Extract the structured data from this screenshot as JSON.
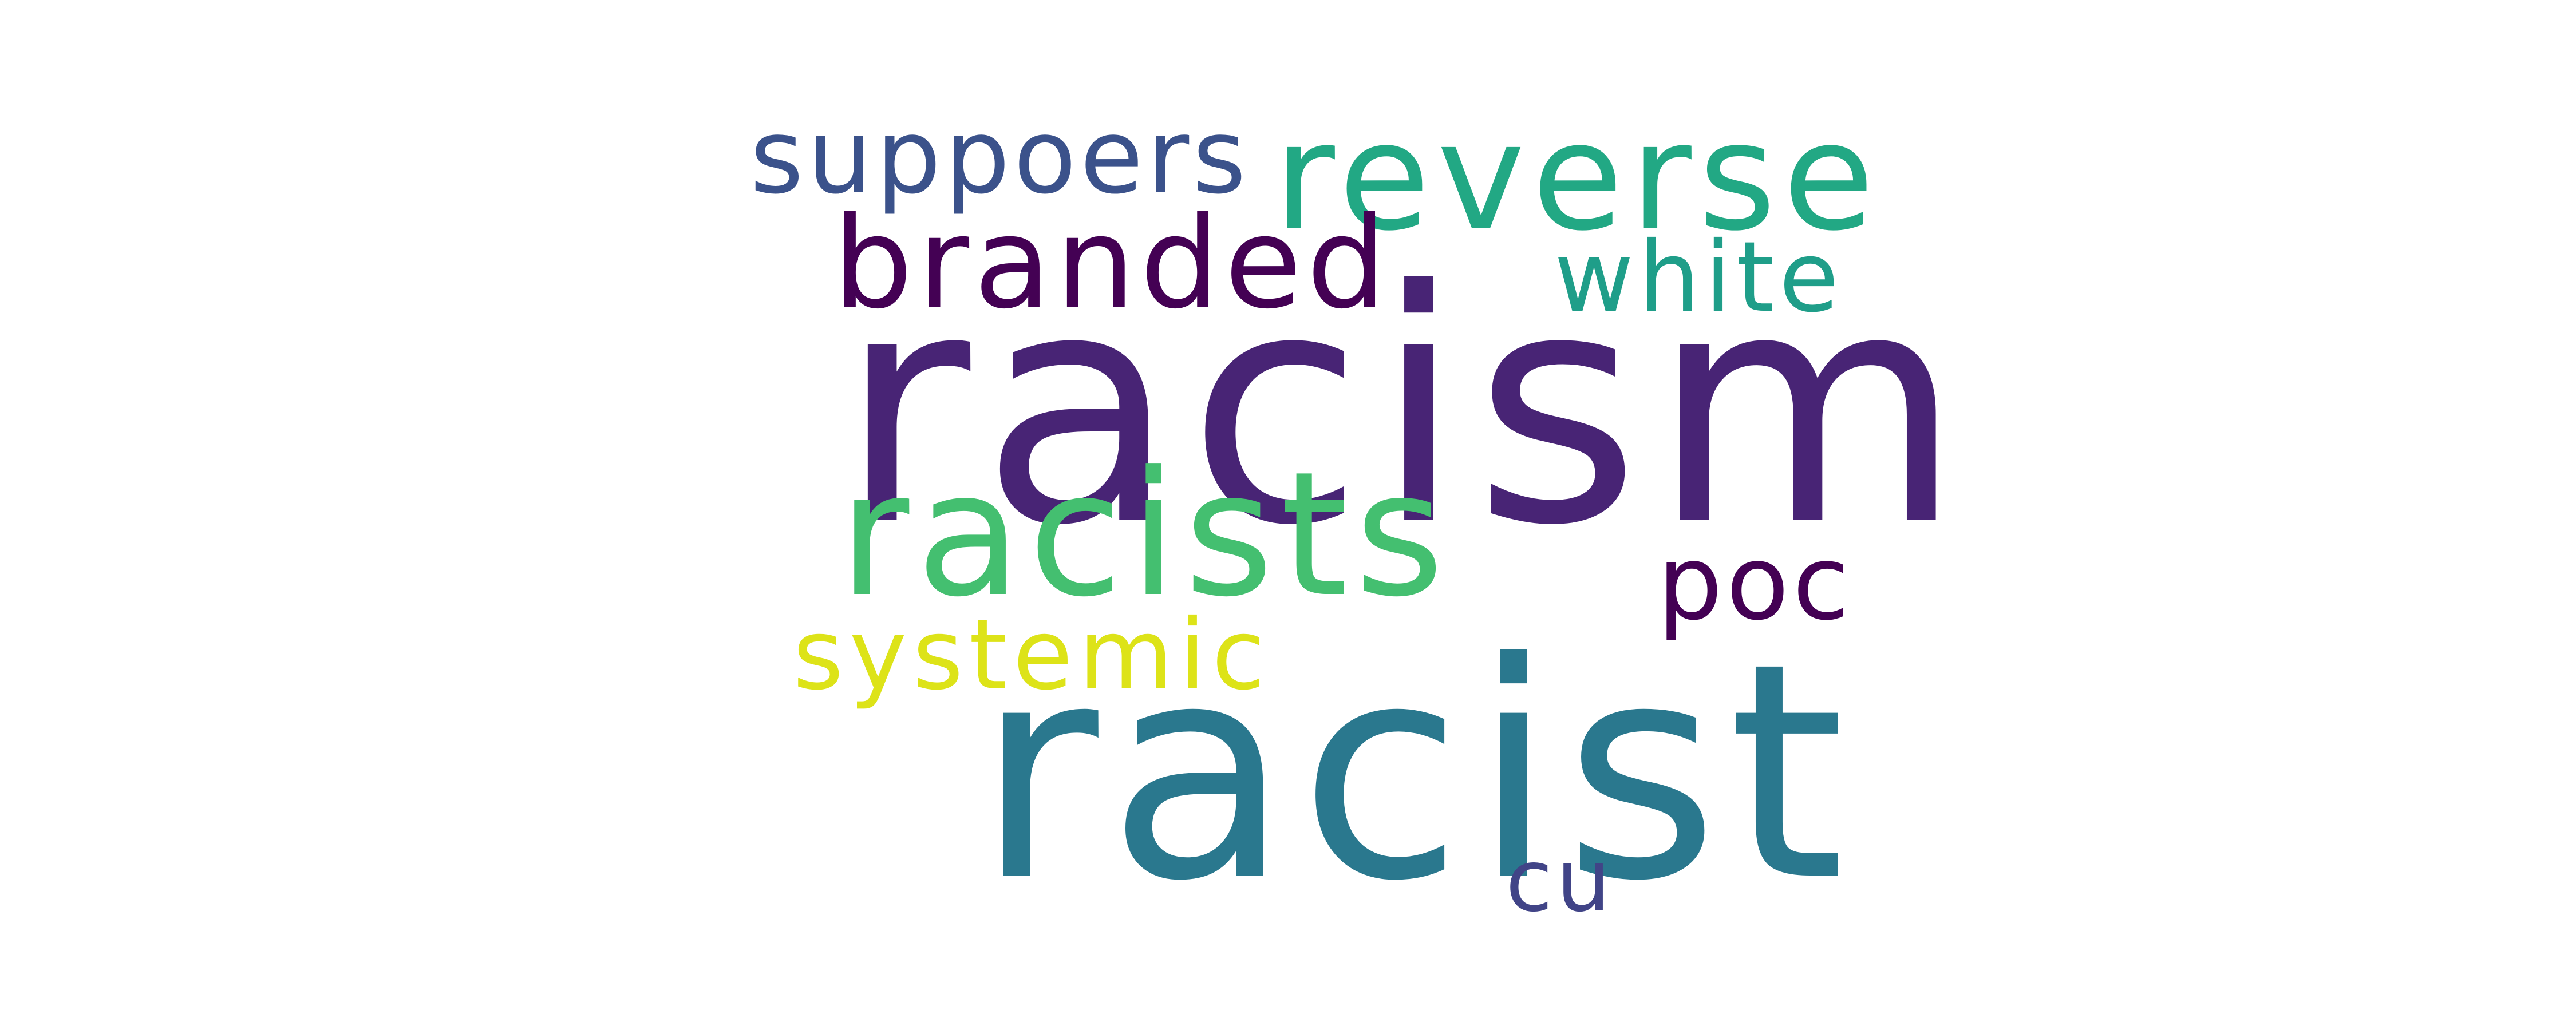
{
  "wordcloud": {
    "background": "#ffffff",
    "words": [
      {
        "text": "racism",
        "color": "#482475"
      },
      {
        "text": "racist",
        "color": "#2a788e"
      },
      {
        "text": "racists",
        "color": "#44bf70"
      },
      {
        "text": "reverse",
        "color": "#22a884"
      },
      {
        "text": "branded",
        "color": "#440154"
      },
      {
        "text": "suppoers",
        "color": "#3b528b"
      },
      {
        "text": "white",
        "color": "#1f9e89"
      },
      {
        "text": "poc",
        "color": "#440154"
      },
      {
        "text": "systemic",
        "color": "#dde318"
      },
      {
        "text": "cu",
        "color": "#414487"
      }
    ]
  }
}
